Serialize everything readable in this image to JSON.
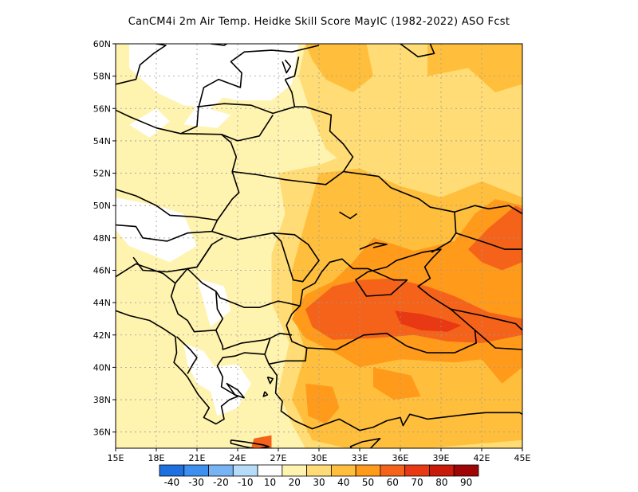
{
  "title": "CanCM4i  2m Air Temp. Heidke Skill Score MayIC (1982-2022) ASO Fcst",
  "map": {
    "lon_range": [
      15,
      45
    ],
    "lat_range": [
      35,
      60
    ],
    "lat_ticks": [
      "60N",
      "58N",
      "56N",
      "54N",
      "52N",
      "50N",
      "48N",
      "46N",
      "44N",
      "42N",
      "40N",
      "38N",
      "36N"
    ],
    "lon_ticks": [
      "15E",
      "18E",
      "21E",
      "24E",
      "27E",
      "30E",
      "33E",
      "36E",
      "39E",
      "42E",
      "45E"
    ],
    "gridlines": "dotted",
    "background_color": "#ffffff"
  },
  "colorbar": {
    "labels": [
      "-40",
      "-30",
      "-20",
      "-10",
      "10",
      "20",
      "30",
      "40",
      "50",
      "60",
      "70",
      "80",
      "90"
    ],
    "colors": [
      "#1e6fe0",
      "#3d8ff0",
      "#77b4f5",
      "#b6dcfa",
      "#ffffff",
      "#fff3b0",
      "#ffdc75",
      "#ffbf3c",
      "#ff9a1a",
      "#f5631a",
      "#e83814",
      "#c91a0a",
      "#a00505"
    ]
  }
}
